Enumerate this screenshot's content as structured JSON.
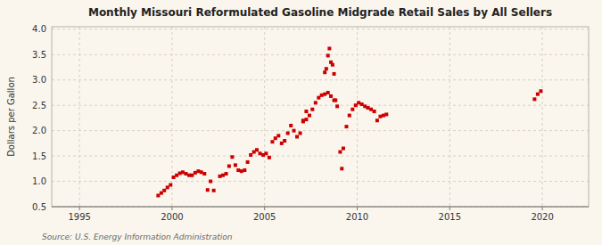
{
  "chart_data": {
    "type": "scatter",
    "title": "Monthly Missouri Reformulated Gasoline Midgrade Retail Sales by All Sellers",
    "ylabel": "Dollars per Gallon",
    "source": "Source: U.S. Energy Information Administration",
    "color": "#CC0000",
    "marker": "square",
    "grid": true,
    "xlim": [
      1993.5,
      2022.5
    ],
    "ylim": [
      0.5,
      4.05
    ],
    "xticks": [
      1995,
      2000,
      2005,
      2010,
      2015,
      2020
    ],
    "yticks": [
      0.5,
      {
        "value": 1.0,
        "label": "1.0"
      },
      1.5,
      {
        "value": 2.0,
        "label": "2.0"
      },
      2.5,
      {
        "value": 3.0,
        "label": "3.0"
      },
      3.5,
      {
        "value": 4.0,
        "label": "4.0"
      }
    ],
    "x": [
      1999.25,
      1999.42,
      1999.58,
      1999.75,
      1999.92,
      2000.08,
      2000.25,
      2000.42,
      2000.58,
      2000.75,
      2000.92,
      2001.08,
      2001.25,
      2001.42,
      2001.58,
      2001.75,
      2001.92,
      2002.08,
      2002.25,
      2002.58,
      2002.75,
      2002.92,
      2003.08,
      2003.25,
      2003.42,
      2003.58,
      2003.75,
      2003.92,
      2004.08,
      2004.25,
      2004.42,
      2004.58,
      2004.75,
      2004.92,
      2005.08,
      2005.25,
      2005.42,
      2005.58,
      2005.75,
      2005.92,
      2006.08,
      2006.25,
      2006.42,
      2006.58,
      2006.75,
      2006.92,
      2007.08,
      2007.25,
      2007.42,
      2007.58,
      2007.75,
      2007.92,
      2008.08,
      2008.25,
      2008.42,
      2008.58,
      2008.75,
      2008.92,
      2007.08,
      2007.25,
      2008.25,
      2008.33,
      2008.42,
      2008.5,
      2008.58,
      2008.67,
      2008.75,
      2008.83,
      2009.08,
      2009.17,
      2009.25,
      2009.42,
      2009.58,
      2009.75,
      2009.92,
      2010.08,
      2010.25,
      2010.42,
      2010.58,
      2010.75,
      2010.92,
      2011.08,
      2011.25,
      2011.42,
      2011.58,
      2019.58,
      2019.75,
      2019.92
    ],
    "values": [
      0.72,
      0.77,
      0.82,
      0.88,
      0.93,
      1.08,
      1.12,
      1.16,
      1.18,
      1.15,
      1.12,
      1.12,
      1.17,
      1.2,
      1.18,
      1.15,
      0.83,
      1.0,
      0.82,
      1.1,
      1.12,
      1.15,
      1.3,
      1.48,
      1.32,
      1.22,
      1.2,
      1.22,
      1.38,
      1.52,
      1.58,
      1.62,
      1.55,
      1.52,
      1.55,
      1.47,
      1.78,
      1.85,
      1.9,
      1.75,
      1.8,
      1.95,
      2.1,
      2.0,
      1.88,
      1.95,
      2.18,
      2.22,
      2.3,
      2.42,
      2.55,
      2.65,
      2.7,
      2.72,
      2.75,
      2.68,
      2.6,
      2.48,
      2.2,
      2.38,
      3.15,
      3.22,
      3.48,
      3.62,
      3.35,
      3.3,
      3.12,
      2.6,
      1.58,
      1.25,
      1.65,
      2.08,
      2.3,
      2.42,
      2.5,
      2.55,
      2.52,
      2.48,
      2.45,
      2.42,
      2.38,
      2.2,
      2.28,
      2.3,
      2.32,
      2.62,
      2.72,
      2.78
    ]
  }
}
